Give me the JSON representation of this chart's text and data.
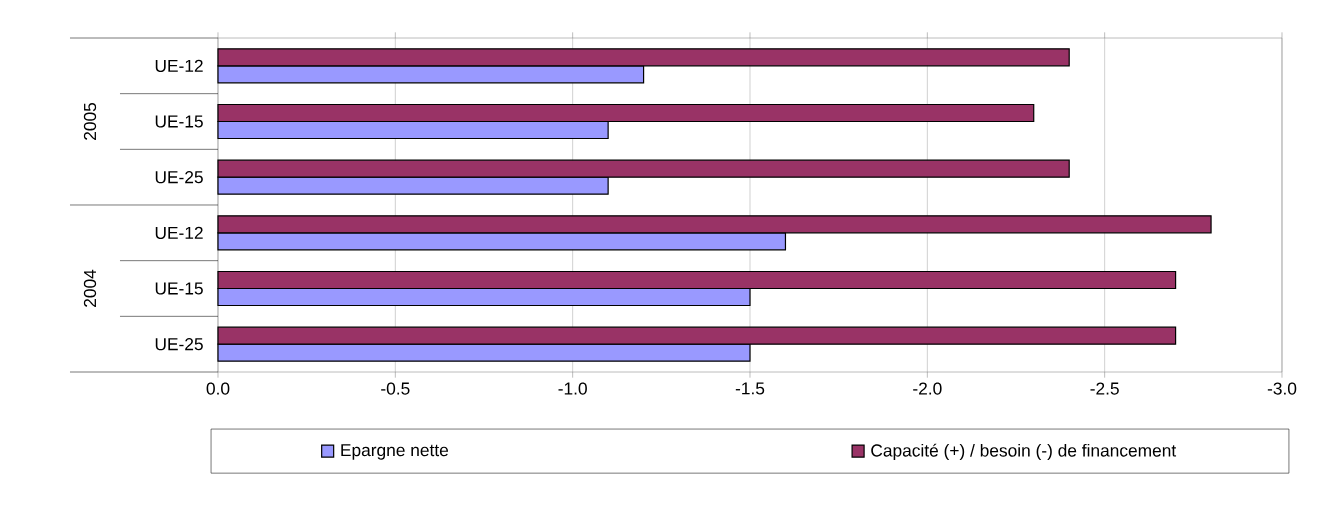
{
  "chart_data": {
    "type": "bar",
    "orientation": "horizontal",
    "categories": [
      "UE-12",
      "UE-15",
      "UE-25",
      "UE-12",
      "UE-15",
      "UE-25"
    ],
    "annotations": [
      "2005",
      "2004"
    ],
    "series": [
      {
        "name": "Epargne nette",
        "color": "#9999ff",
        "values": [
          -1.2,
          -1.1,
          -1.1,
          -1.6,
          -1.5,
          -1.5
        ]
      },
      {
        "name": "Capacité (+) / besoin (-) de financement",
        "color": "#993366",
        "values": [
          -2.4,
          -2.3,
          -2.4,
          -2.8,
          -2.7,
          -2.7
        ]
      }
    ],
    "xlim": [
      0,
      -3
    ],
    "xticks": [
      {
        "value": 0,
        "label": "0.0"
      },
      {
        "value": -0.5,
        "label": "-0.5"
      },
      {
        "value": -1,
        "label": "-1.0"
      },
      {
        "value": -1.5,
        "label": "-1.5"
      },
      {
        "value": -2,
        "label": "-2.0"
      },
      {
        "value": -2.5,
        "label": "-2.5"
      },
      {
        "value": -3,
        "label": "-3.0"
      }
    ],
    "grid": "x",
    "legend": "bottom"
  }
}
